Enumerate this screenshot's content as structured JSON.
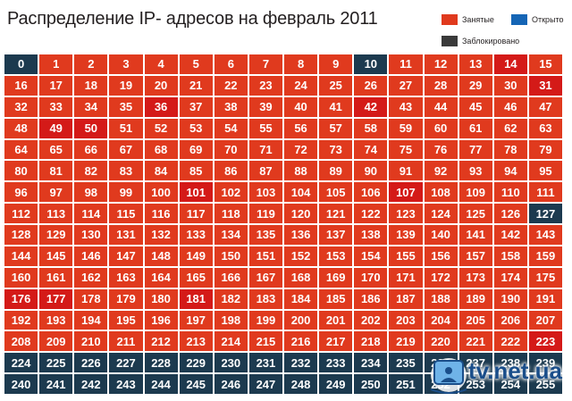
{
  "title": "Распределение IP- адресов на февраль 2011",
  "legend": {
    "occupied": {
      "label": "Занятые",
      "color": "#e03a1e"
    },
    "open": {
      "label": "Открыто",
      "color": "#1565b5"
    },
    "blocked": {
      "label": "Заблокировано",
      "color": "#3a3a3a"
    }
  },
  "chart_data": {
    "type": "heatmap",
    "columns": 16,
    "range": [
      0,
      255
    ],
    "colors": {
      "occupied": "#e03a1e",
      "occupied_highlight": "#d41a18",
      "open": "#1565b5",
      "blocked": "#1c3a4f"
    },
    "blocked": [
      0,
      10,
      127,
      224,
      225,
      226,
      227,
      228,
      229,
      230,
      231,
      232,
      233,
      234,
      235,
      236,
      237,
      238,
      239,
      240,
      241,
      242,
      243,
      244,
      245,
      246,
      247,
      248,
      249,
      250,
      251,
      252,
      253,
      254,
      255
    ],
    "open": [],
    "highlighted": [
      14,
      31,
      36,
      42,
      49,
      50,
      101,
      107,
      176,
      177,
      181,
      223
    ]
  },
  "watermark": {
    "text": "tv.net.ua"
  }
}
